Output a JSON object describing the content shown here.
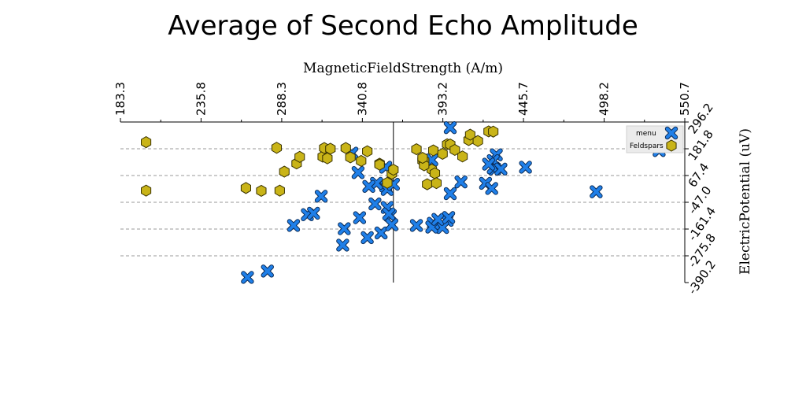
{
  "chart_data": {
    "type": "scatter",
    "title": "Average of Second Echo Amplitude",
    "xlabel": "MagneticFieldStrength (A/m)",
    "ylabel": "ElectricPotential (uV)",
    "xlim": [
      183.3,
      550.7
    ],
    "ylim": [
      -390.2,
      296.2
    ],
    "xticks": [
      "183.3",
      "235.8",
      "288.3",
      "340.8",
      "393.2",
      "445.7",
      "498.2",
      "550.7"
    ],
    "yticks": [
      "296.2",
      "181.8",
      "67.4",
      "-47.0",
      "-161.4",
      "-275.8",
      "-390.2"
    ],
    "x_axis_position": "top",
    "y_axis_position": "right",
    "grid": "horizontal dashed",
    "reference_line_x": 361,
    "legend_position": "top-right",
    "series": [
      {
        "name": "menu",
        "marker": "x",
        "color": "#1f7fe8",
        "points": [
          [
            266,
            -368
          ],
          [
            279,
            -341
          ],
          [
            296,
            -146
          ],
          [
            305,
            -100
          ],
          [
            309,
            -94
          ],
          [
            314,
            -21
          ],
          [
            339,
            -113
          ],
          [
            329,
            -160
          ],
          [
            328,
            -230
          ],
          [
            334,
            163
          ],
          [
            338,
            80
          ],
          [
            344,
            -198
          ],
          [
            353,
            -178
          ],
          [
            359,
            -103
          ],
          [
            349,
            -54
          ],
          [
            357,
            -69
          ],
          [
            356,
            23
          ],
          [
            357,
            8
          ],
          [
            361,
            30
          ],
          [
            360,
            -143
          ],
          [
            358,
            -97
          ],
          [
            376,
            -146
          ],
          [
            396,
            -124
          ],
          [
            393,
            -155
          ],
          [
            387,
            -137
          ],
          [
            386,
            -153
          ],
          [
            390,
            -120
          ],
          [
            397,
            -112
          ],
          [
            386,
            134
          ],
          [
            398,
            -10
          ],
          [
            398,
            272
          ],
          [
            405,
            40
          ],
          [
            421,
            34
          ],
          [
            425,
            12
          ],
          [
            427,
            95
          ],
          [
            428,
            156
          ],
          [
            426,
            100
          ],
          [
            426,
            131
          ],
          [
            423,
            116
          ],
          [
            431,
            95
          ],
          [
            447,
            103
          ],
          [
            493,
            -2
          ],
          [
            534,
            174
          ],
          [
            350,
            34
          ],
          [
            345,
            21
          ],
          [
            356,
            103
          ]
        ]
      },
      {
        "name": "Feldspars",
        "marker": "hexagon",
        "color": "#c9b418",
        "points": [
          [
            200,
            210
          ],
          [
            200,
            3
          ],
          [
            265,
            14
          ],
          [
            275,
            2
          ],
          [
            285,
            186
          ],
          [
            287,
            3
          ],
          [
            290,
            84
          ],
          [
            298,
            119
          ],
          [
            300,
            147
          ],
          [
            315,
            148
          ],
          [
            316,
            185
          ],
          [
            320,
            182
          ],
          [
            318,
            141
          ],
          [
            330,
            185
          ],
          [
            333,
            145
          ],
          [
            340,
            130
          ],
          [
            344,
            171
          ],
          [
            352,
            118
          ],
          [
            357,
            36
          ],
          [
            360,
            75
          ],
          [
            361,
            92
          ],
          [
            376,
            180
          ],
          [
            383,
            30
          ],
          [
            386,
            93
          ],
          [
            388,
            77
          ],
          [
            389,
            35
          ],
          [
            380,
            131
          ],
          [
            381,
            130
          ],
          [
            387,
            175
          ],
          [
            393,
            160
          ],
          [
            396,
            201
          ],
          [
            398,
            200
          ],
          [
            401,
            177
          ],
          [
            406,
            149
          ],
          [
            410,
            219
          ],
          [
            411,
            242
          ],
          [
            416,
            215
          ],
          [
            423,
            256
          ],
          [
            426,
            255
          ],
          [
            381,
            111
          ],
          [
            352,
            114
          ],
          [
            380,
            143
          ]
        ]
      }
    ]
  },
  "legend": {
    "items": [
      {
        "label": "menu",
        "marker": "x",
        "color": "#1f7fe8"
      },
      {
        "label": "Feldspars",
        "marker": "hexagon",
        "color": "#c9b418"
      }
    ]
  }
}
